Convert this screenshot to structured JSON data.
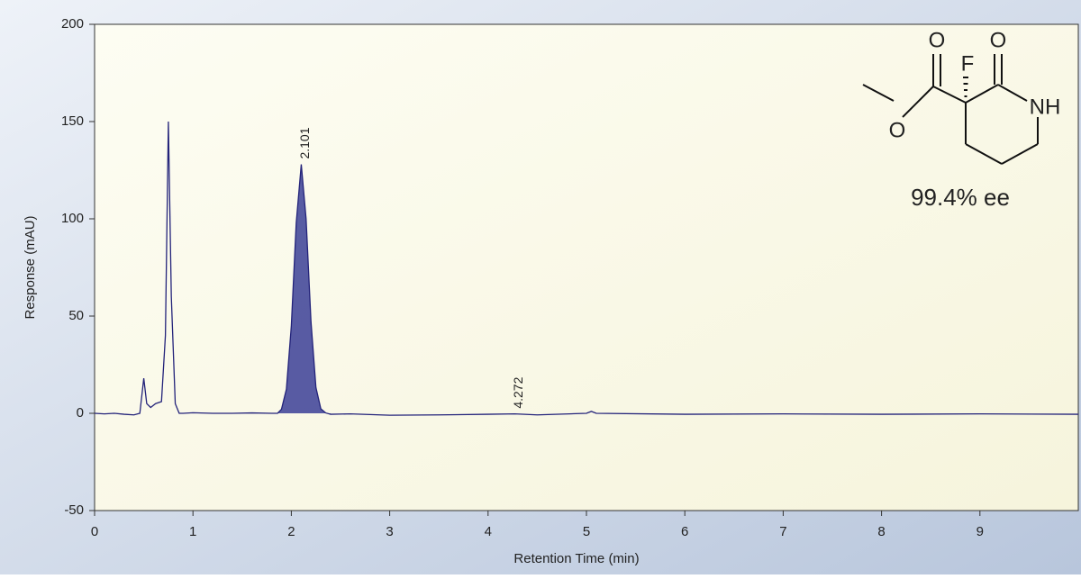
{
  "chart_data": {
    "type": "line",
    "xlabel": "Retention Time (min)",
    "ylabel": "Response (mAU)",
    "x": [
      0,
      0.1,
      0.2,
      0.3,
      0.4,
      0.46,
      0.5,
      0.53,
      0.57,
      0.62,
      0.68,
      0.72,
      0.75,
      0.78,
      0.82,
      0.86,
      0.9,
      1.0,
      1.2,
      1.4,
      1.6,
      1.8,
      1.86,
      1.9,
      1.95,
      2.0,
      2.05,
      2.101,
      2.15,
      2.2,
      2.25,
      2.3,
      2.35,
      2.4,
      2.6,
      3.0,
      3.5,
      4.0,
      4.272,
      4.5,
      5.0,
      5.05,
      5.1,
      6.0,
      7.0,
      8.0,
      9.0,
      10.0
    ],
    "series": [
      {
        "color": "#23237a",
        "values": [
          0,
          -0.3,
          0,
          -0.5,
          -0.8,
          0,
          18,
          5,
          3,
          5,
          6,
          40,
          150,
          60,
          5,
          0,
          0,
          0.3,
          0,
          0,
          0.2,
          0,
          0,
          2.1,
          12.4,
          45,
          98,
          128,
          100,
          47,
          13.3,
          2.3,
          0.2,
          -0.5,
          -0.3,
          -1,
          -0.8,
          -0.5,
          -0.3,
          -0.8,
          0,
          1,
          0,
          -0.5,
          -0.3,
          -0.5,
          -0.3,
          -0.5
        ]
      }
    ],
    "peak_fill": {
      "from": 1.86,
      "to": 2.4,
      "color": "#3b3f96"
    },
    "peak_labels": [
      2.101,
      4.272
    ],
    "xlim": [
      0,
      10
    ],
    "xticks": [
      0,
      1,
      2,
      3,
      4,
      5,
      6,
      7,
      8,
      9
    ],
    "ylim": [
      -50,
      200
    ],
    "yticks": [
      -50,
      0,
      50,
      100,
      150,
      200
    ],
    "structure_labels": [
      "O",
      "O",
      "F",
      "NH",
      "O"
    ],
    "annotation": "99.4% ee"
  }
}
